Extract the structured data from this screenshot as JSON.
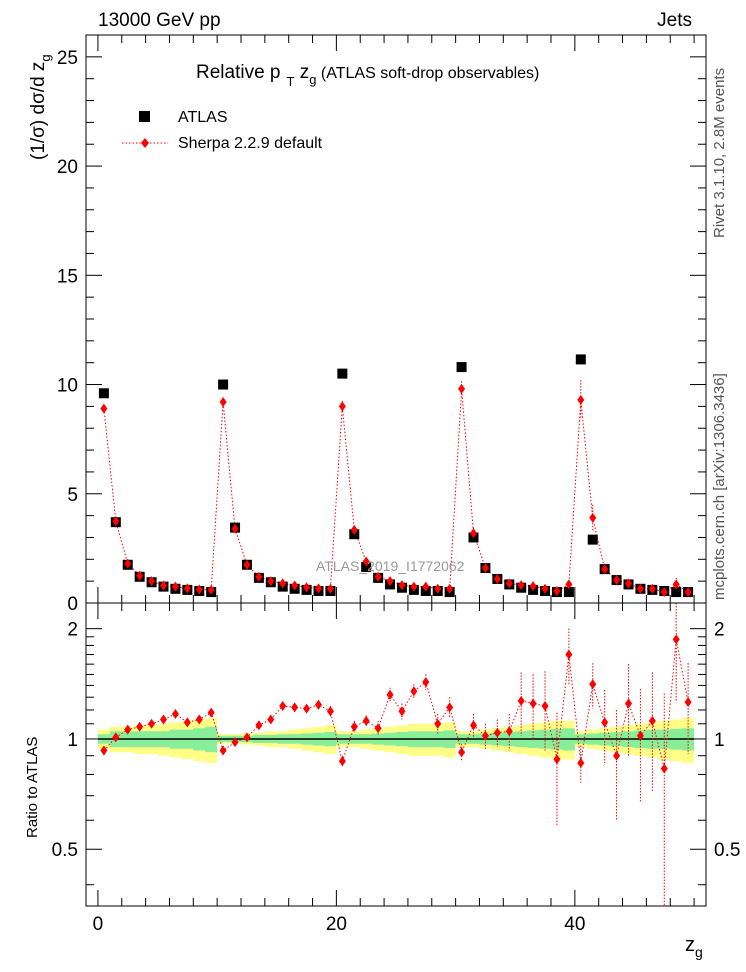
{
  "header": {
    "left": "13000 GeV pp",
    "right": "Jets"
  },
  "side_labels": {
    "rivet": "Rivet 3.1.10, 2.8M events",
    "mcplots": "mcplots.cern.ch [arXiv:1306.3436]"
  },
  "watermark": "ATLAS_2019_I1772062",
  "colors": {
    "data": "#000000",
    "mc": "#ff0000",
    "band_inner": "#88ee99",
    "band_outer": "#ffff88"
  },
  "chart_data": [
    {
      "type": "scatter",
      "title": "Relative p_T z_g (ATLAS soft-drop observables)",
      "title_parts": {
        "pre": "Relative p",
        "sub1": "T",
        "mid": " z",
        "sub2": "g",
        "post": " (ATLAS soft-drop observables)"
      },
      "ylabel": "(1/σ) dσ/d z_g",
      "ylabel_parts": {
        "main": "(1/σ) dσ/d z",
        "sub": "g"
      },
      "xlim": [
        -1,
        51
      ],
      "ylim": [
        0,
        26
      ],
      "yticks": [
        0,
        5,
        10,
        15,
        20,
        25
      ],
      "legend_position": "top-left",
      "series": [
        {
          "name": "ATLAS",
          "marker": "square",
          "color": "#000000",
          "x": [
            0.5,
            1.5,
            2.5,
            3.5,
            4.5,
            5.5,
            6.5,
            7.5,
            8.5,
            9.5,
            10.5,
            11.5,
            12.5,
            13.5,
            14.5,
            15.5,
            16.5,
            17.5,
            18.5,
            19.5,
            20.5,
            21.5,
            22.5,
            23.5,
            24.5,
            25.5,
            26.5,
            27.5,
            28.5,
            29.5,
            30.5,
            31.5,
            32.5,
            33.5,
            34.5,
            35.5,
            36.5,
            37.5,
            38.5,
            39.5,
            40.5,
            41.5,
            42.5,
            43.5,
            44.5,
            45.5,
            46.5,
            47.5,
            48.5,
            49.5
          ],
          "y": [
            9.6,
            3.7,
            1.75,
            1.2,
            0.95,
            0.75,
            0.65,
            0.6,
            0.55,
            0.5,
            10.0,
            3.45,
            1.75,
            1.15,
            0.95,
            0.75,
            0.65,
            0.6,
            0.55,
            0.55,
            10.5,
            3.15,
            1.65,
            1.15,
            0.85,
            0.7,
            0.6,
            0.55,
            0.55,
            0.5,
            10.8,
            3.0,
            1.6,
            1.1,
            0.85,
            0.7,
            0.6,
            0.55,
            0.5,
            0.5,
            11.15,
            2.9,
            1.55,
            1.05,
            0.85,
            0.65,
            0.6,
            0.55,
            0.5,
            0.5
          ]
        },
        {
          "name": "Sherpa 2.2.9 default",
          "marker": "diamond",
          "color": "#ff0000",
          "line": "dotted",
          "x": [
            0.5,
            1.5,
            2.5,
            3.5,
            4.5,
            5.5,
            6.5,
            7.5,
            8.5,
            9.5,
            10.5,
            11.5,
            12.5,
            13.5,
            14.5,
            15.5,
            16.5,
            17.5,
            18.5,
            19.5,
            20.5,
            21.5,
            22.5,
            23.5,
            24.5,
            25.5,
            26.5,
            27.5,
            28.5,
            29.5,
            30.5,
            31.5,
            32.5,
            33.5,
            34.5,
            35.5,
            36.5,
            37.5,
            38.5,
            39.5,
            40.5,
            41.5,
            42.5,
            43.5,
            44.5,
            45.5,
            46.5,
            47.5,
            48.5,
            49.5
          ],
          "y": [
            8.9,
            3.75,
            1.8,
            1.25,
            1.0,
            0.8,
            0.75,
            0.67,
            0.62,
            0.6,
            9.2,
            3.4,
            1.75,
            1.2,
            1.0,
            0.9,
            0.8,
            0.72,
            0.67,
            0.65,
            9.0,
            3.35,
            1.9,
            1.2,
            1.0,
            0.82,
            0.75,
            0.75,
            0.65,
            0.65,
            9.8,
            3.2,
            1.6,
            1.1,
            0.9,
            0.82,
            0.77,
            0.65,
            0.55,
            0.85,
            9.3,
            3.9,
            1.55,
            1.05,
            0.9,
            0.65,
            0.65,
            0.5,
            0.85,
            0.5
          ],
          "yerr": [
            0.15,
            0.1,
            0.06,
            0.05,
            0.04,
            0.04,
            0.04,
            0.04,
            0.04,
            0.04,
            0.2,
            0.12,
            0.08,
            0.06,
            0.05,
            0.05,
            0.05,
            0.05,
            0.05,
            0.05,
            0.25,
            0.15,
            0.1,
            0.08,
            0.06,
            0.06,
            0.06,
            0.06,
            0.06,
            0.06,
            0.35,
            0.25,
            0.15,
            0.1,
            0.1,
            0.1,
            0.1,
            0.1,
            0.1,
            0.15,
            0.9,
            0.6,
            0.25,
            0.2,
            0.2,
            0.15,
            0.15,
            0.15,
            0.3,
            0.15
          ]
        }
      ]
    },
    {
      "type": "scatter",
      "ylabel": "Ratio to ATLAS",
      "xlabel": "z_g",
      "xlabel_parts": {
        "main": "z",
        "sub": "g"
      },
      "xlim": [
        -1,
        51
      ],
      "ylim": [
        0.35,
        2.35
      ],
      "xticks": [
        0,
        20,
        40
      ],
      "yticks": [
        0.5,
        1,
        2
      ],
      "reference_line": 1,
      "band_inner_halfwidth": [
        0.03,
        0.05,
        0.05,
        0.05,
        0.05,
        0.05,
        0.06,
        0.06,
        0.07,
        0.08,
        0.02,
        0.02,
        0.02,
        0.025,
        0.025,
        0.03,
        0.03,
        0.035,
        0.04,
        0.045,
        0.03,
        0.03,
        0.03,
        0.035,
        0.04,
        0.045,
        0.05,
        0.05,
        0.05,
        0.055,
        0.03,
        0.03,
        0.035,
        0.04,
        0.045,
        0.05,
        0.055,
        0.06,
        0.065,
        0.07,
        0.03,
        0.035,
        0.04,
        0.045,
        0.05,
        0.055,
        0.06,
        0.06,
        0.065,
        0.07
      ],
      "band_outer_halfwidth": [
        0.06,
        0.08,
        0.08,
        0.09,
        0.09,
        0.1,
        0.11,
        0.12,
        0.13,
        0.14,
        0.03,
        0.03,
        0.035,
        0.04,
        0.05,
        0.05,
        0.06,
        0.07,
        0.08,
        0.09,
        0.05,
        0.05,
        0.06,
        0.07,
        0.08,
        0.09,
        0.1,
        0.1,
        0.1,
        0.11,
        0.05,
        0.05,
        0.06,
        0.07,
        0.08,
        0.09,
        0.1,
        0.11,
        0.12,
        0.12,
        0.05,
        0.06,
        0.07,
        0.08,
        0.09,
        0.1,
        0.11,
        0.12,
        0.13,
        0.14
      ],
      "series": [
        {
          "name": "Sherpa 2.2.9 default",
          "marker": "diamond",
          "color": "#ff0000",
          "x": [
            0.5,
            1.5,
            2.5,
            3.5,
            4.5,
            5.5,
            6.5,
            7.5,
            8.5,
            9.5,
            10.5,
            11.5,
            12.5,
            13.5,
            14.5,
            15.5,
            16.5,
            17.5,
            18.5,
            19.5,
            20.5,
            21.5,
            22.5,
            23.5,
            24.5,
            25.5,
            26.5,
            27.5,
            28.5,
            29.5,
            30.5,
            31.5,
            32.5,
            33.5,
            34.5,
            35.5,
            36.5,
            37.5,
            38.5,
            39.5,
            40.5,
            41.5,
            42.5,
            43.5,
            44.5,
            45.5,
            46.5,
            47.5,
            48.5,
            49.5
          ],
          "y": [
            0.93,
            1.01,
            1.06,
            1.08,
            1.1,
            1.13,
            1.17,
            1.11,
            1.13,
            1.18,
            0.93,
            0.98,
            1.01,
            1.09,
            1.13,
            1.23,
            1.22,
            1.21,
            1.24,
            1.19,
            0.87,
            1.08,
            1.12,
            1.07,
            1.32,
            1.19,
            1.35,
            1.43,
            1.1,
            1.22,
            0.92,
            1.09,
            1.02,
            1.04,
            1.05,
            1.27,
            1.25,
            1.23,
            0.88,
            1.7,
            0.86,
            1.41,
            1.11,
            0.9,
            1.25,
            1.02,
            1.12,
            0.83,
            1.87,
            1.26
          ],
          "yerr": [
            0.02,
            0.02,
            0.02,
            0.02,
            0.02,
            0.02,
            0.02,
            0.02,
            0.02,
            0.03,
            0.02,
            0.02,
            0.02,
            0.02,
            0.02,
            0.02,
            0.02,
            0.02,
            0.03,
            0.04,
            0.03,
            0.04,
            0.04,
            0.05,
            0.06,
            0.06,
            0.06,
            0.07,
            0.07,
            0.08,
            0.05,
            0.08,
            0.08,
            0.09,
            0.12,
            0.25,
            0.25,
            0.3,
            0.3,
            0.3,
            0.1,
            0.2,
            0.25,
            0.3,
            0.35,
            0.35,
            0.4,
            0.5,
            0.6,
            0.35
          ]
        }
      ]
    }
  ]
}
